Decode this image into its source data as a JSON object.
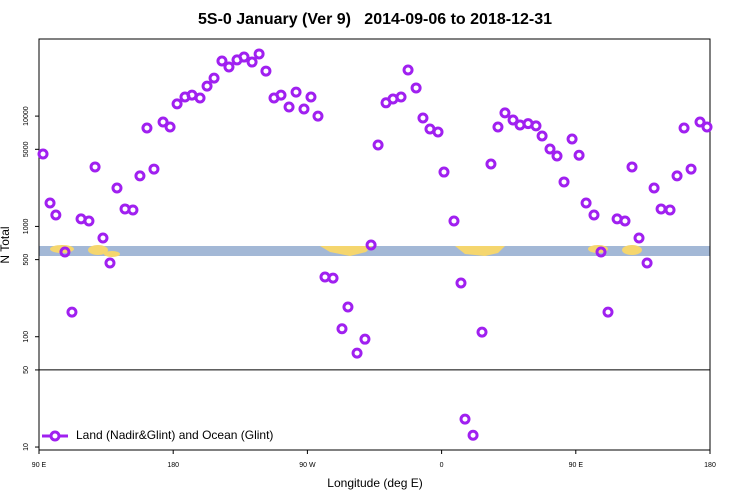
{
  "chart_data": {
    "type": "scatter",
    "title": "5S-0 January (Ver 9)   2014-09-06 to 2018-12-31",
    "x_label": "Longitude (deg E)",
    "y_label": "N Total",
    "log_y": true,
    "legend_position": "bottom-left",
    "reference_line": 50,
    "xlim": [
      90,
      540
    ],
    "ylim": [
      9.4,
      50000
    ],
    "xticks": [
      {
        "value": 90,
        "label": "90 E"
      },
      {
        "value": 180,
        "label": "180"
      },
      {
        "value": 270,
        "label": "90 W"
      },
      {
        "value": 360,
        "label": "0"
      },
      {
        "value": 450,
        "label": "90 E"
      },
      {
        "value": 540,
        "label": "180"
      }
    ],
    "yticks": [
      10,
      50,
      100,
      500,
      1000,
      5000,
      10000
    ],
    "series": [
      {
        "name": "Land (Nadir&Glint) and Ocean (Glint)",
        "color": "#a020f0",
        "x": [
          92.7,
          97.4,
          101.3,
          107.4,
          112.1,
          118.2,
          123.5,
          127.6,
          132.9,
          137.6,
          142.3,
          147.7,
          153.0,
          157.7,
          162.4,
          167.1,
          173.2,
          177.9,
          182.6,
          187.9,
          192.6,
          198.0,
          202.7,
          207.4,
          212.7,
          217.4,
          222.8,
          227.5,
          232.9,
          237.6,
          242.2,
          247.6,
          252.3,
          257.7,
          262.4,
          267.7,
          272.4,
          277.1,
          281.8,
          287.2,
          293.2,
          297.2,
          303.3,
          308.6,
          312.7,
          317.4,
          322.7,
          327.4,
          332.8,
          337.5,
          342.9,
          347.5,
          352.2,
          357.6,
          361.6,
          368.3,
          373.0,
          375.7,
          381.1,
          387.1,
          393.1,
          397.8,
          402.5,
          407.9,
          412.6,
          418.0,
          423.3,
          427.4,
          432.7,
          437.4,
          442.1,
          447.5,
          452.2,
          456.9,
          462.2,
          466.9,
          471.6,
          477.7,
          483.0,
          487.7,
          492.4,
          497.8,
          502.5,
          507.2,
          513.2,
          517.9,
          522.6,
          527.3,
          533.3,
          538.0
        ],
        "values": [
          4530,
          1630,
          1270,
          586,
          167,
          1170,
          1120,
          3460,
          785,
          466,
          2230,
          1440,
          1410,
          2870,
          7800,
          3310,
          8840,
          7960,
          12900,
          14900,
          15500,
          14600,
          18700,
          22100,
          31600,
          27900,
          32300,
          34300,
          30900,
          36600,
          25600,
          14600,
          15500,
          12100,
          16500,
          11600,
          14900,
          10000,
          348,
          340,
          118,
          186,
          71,
          95,
          678,
          5470,
          13200,
          14300,
          14900,
          26200,
          18000,
          9620,
          7640,
          7180,
          3110,
          1120,
          307,
          17.9,
          12.8,
          110,
          3680,
          7960,
          10700,
          9220,
          8300,
          8550,
          8160,
          6600,
          5030,
          4350,
          2530,
          6200,
          4420,
          1630,
          1270,
          586,
          167,
          1170,
          1120,
          3460,
          785,
          466,
          2230,
          1440,
          1410,
          2870,
          7800,
          3310,
          8840,
          7960
        ]
      }
    ]
  }
}
